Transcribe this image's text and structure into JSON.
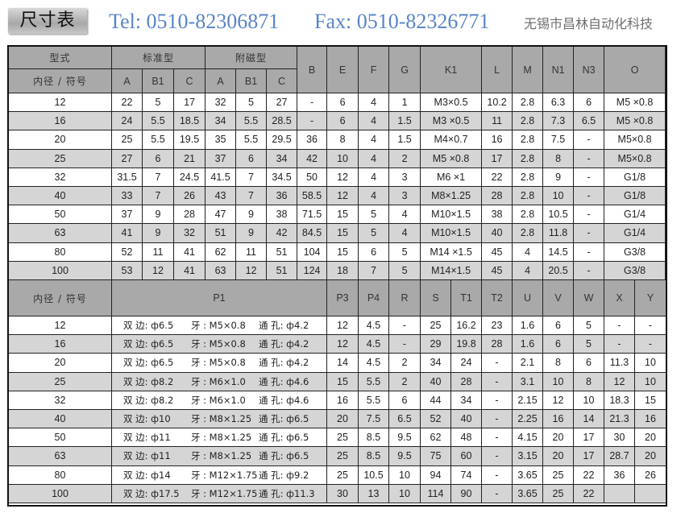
{
  "title": "尺寸表",
  "table1": {
    "group_header": {
      "model": "型式",
      "standard": "标准型",
      "magnetic": "附磁型"
    },
    "bore_header": "内径 / 符号",
    "sub_headers": [
      "A",
      "B1",
      "C",
      "A",
      "B1",
      "C"
    ],
    "single_headers": [
      "B",
      "E",
      "F",
      "G",
      "K1",
      "L",
      "M",
      "N1",
      "N3",
      "O"
    ],
    "rows": [
      [
        "12",
        "22",
        "5",
        "17",
        "32",
        "5",
        "27",
        "-",
        "6",
        "4",
        "1",
        "M3×0.5",
        "10.2",
        "2.8",
        "6.3",
        "6",
        "M5 ×0.8"
      ],
      [
        "16",
        "24",
        "5.5",
        "18.5",
        "34",
        "5.5",
        "28.5",
        "-",
        "6",
        "4",
        "1.5",
        "M3 ×0.5",
        "11",
        "2.8",
        "7.3",
        "6.5",
        "M5 ×0.8"
      ],
      [
        "20",
        "25",
        "5.5",
        "19.5",
        "35",
        "5.5",
        "29.5",
        "36",
        "8",
        "4",
        "1.5",
        "M4×0.7",
        "16",
        "2.8",
        "7.5",
        "-",
        "M5×0.8"
      ],
      [
        "25",
        "27",
        "6",
        "21",
        "37",
        "6",
        "34",
        "42",
        "10",
        "4",
        "2",
        "M5 ×0.8",
        "17",
        "2.8",
        "8",
        "-",
        "M5×0.8"
      ],
      [
        "32",
        "31.5",
        "7",
        "24.5",
        "41.5",
        "7",
        "34.5",
        "50",
        "12",
        "4",
        "3",
        "M6 ×1",
        "22",
        "2.8",
        "9",
        "-",
        "G1/8"
      ],
      [
        "40",
        "33",
        "7",
        "26",
        "43",
        "7",
        "36",
        "58.5",
        "12",
        "4",
        "3",
        "M8×1.25",
        "28",
        "2.8",
        "10",
        "-",
        "G1/8"
      ],
      [
        "50",
        "37",
        "9",
        "28",
        "47",
        "9",
        "38",
        "71.5",
        "15",
        "5",
        "4",
        "M10×1.5",
        "38",
        "2.8",
        "10.5",
        "-",
        "G1/4"
      ],
      [
        "63",
        "41",
        "9",
        "32",
        "51",
        "9",
        "42",
        "84.5",
        "15",
        "5",
        "4",
        "M10×1.5",
        "40",
        "2.8",
        "11.8",
        "-",
        "G1/4"
      ],
      [
        "80",
        "52",
        "11",
        "41",
        "62",
        "11",
        "51",
        "104",
        "15",
        "6",
        "5",
        "M14 ×1.5",
        "45",
        "4",
        "14.5",
        "-",
        "G3/8"
      ],
      [
        "100",
        "53",
        "12",
        "41",
        "63",
        "12",
        "51",
        "124",
        "18",
        "7",
        "5",
        "M14×1.5",
        "45",
        "4",
        "20.5",
        "-",
        "G3/8"
      ]
    ]
  },
  "table2": {
    "headers": [
      "内径 / 符号",
      "P1",
      "P3",
      "P4",
      "R",
      "S",
      "T1",
      "T2",
      "U",
      "V",
      "W",
      "X",
      "Y"
    ],
    "rows": [
      {
        "bore": "12",
        "p1": [
          "双 边: ф6.5",
          "牙 : M5×0.8",
          "通 孔: ф4.2"
        ],
        "vals": [
          "12",
          "4.5",
          "-",
          "25",
          "16.2",
          "23",
          "1.6",
          "6",
          "5",
          "-",
          "-"
        ]
      },
      {
        "bore": "16",
        "p1": [
          "双 边: ф6.5",
          "牙 : M5×0.8",
          "通 孔: ф4.2"
        ],
        "vals": [
          "12",
          "4.5",
          "-",
          "29",
          "19.8",
          "28",
          "1.6",
          "6",
          "5",
          "-",
          "-"
        ]
      },
      {
        "bore": "20",
        "p1": [
          "双 边: ф6.5",
          "牙 : M5×0.8",
          "通 孔: ф4.2"
        ],
        "vals": [
          "14",
          "4.5",
          "2",
          "34",
          "24",
          "-",
          "2.1",
          "8",
          "6",
          "11.3",
          "10"
        ]
      },
      {
        "bore": "25",
        "p1": [
          "双 边: ф8.2",
          "牙 : M6×1.0",
          "通 孔: ф4.6"
        ],
        "vals": [
          "15",
          "5.5",
          "2",
          "40",
          "28",
          "-",
          "3.1",
          "10",
          "8",
          "12",
          "10"
        ]
      },
      {
        "bore": "32",
        "p1": [
          "双 边: ф8.2",
          "牙 : M6×1.0",
          "通 孔: ф4.6"
        ],
        "vals": [
          "16",
          "5.5",
          "6",
          "44",
          "34",
          "-",
          "2.15",
          "12",
          "10",
          "18.3",
          "15"
        ]
      },
      {
        "bore": "40",
        "p1": [
          "双 边: ф10",
          "牙 : M8×1.25",
          "通 孔: ф6.5"
        ],
        "vals": [
          "20",
          "7.5",
          "6.5",
          "52",
          "40",
          "-",
          "2.25",
          "16",
          "14",
          "21.3",
          "16"
        ]
      },
      {
        "bore": "50",
        "p1": [
          "双 边: ф11",
          "牙 : M8×1.25",
          "通 孔: ф6.5"
        ],
        "vals": [
          "25",
          "8.5",
          "9.5",
          "62",
          "48",
          "-",
          "4.15",
          "20",
          "17",
          "30",
          "20"
        ]
      },
      {
        "bore": "63",
        "p1": [
          "双 边: ф11",
          "牙 : M8×1.25",
          "通 孔: ф6.5"
        ],
        "vals": [
          "25",
          "8.5",
          "9.5",
          "75",
          "60",
          "-",
          "3.15",
          "20",
          "17",
          "28.7",
          "20"
        ]
      },
      {
        "bore": "80",
        "p1": [
          "双 边: ф14",
          "牙 : M12×1.75",
          "通 孔: ф9.2"
        ],
        "vals": [
          "25",
          "10.5",
          "10",
          "94",
          "74",
          "-",
          "3.65",
          "25",
          "22",
          "36",
          "26"
        ]
      },
      {
        "bore": "100",
        "p1": [
          "双 边: ф17.5",
          "牙 : M12×1.75",
          "通 孔: ф11.3"
        ],
        "vals": [
          "30",
          "13",
          "10",
          "114",
          "90",
          "-",
          "3.65",
          "25",
          "22",
          "",
          ""
        ]
      }
    ]
  },
  "watermarks": {
    "tel": "Tel: 0510-82306871",
    "fax": "Fax: 0510-82326771",
    "company": "无锡市昌林自动化科技"
  }
}
